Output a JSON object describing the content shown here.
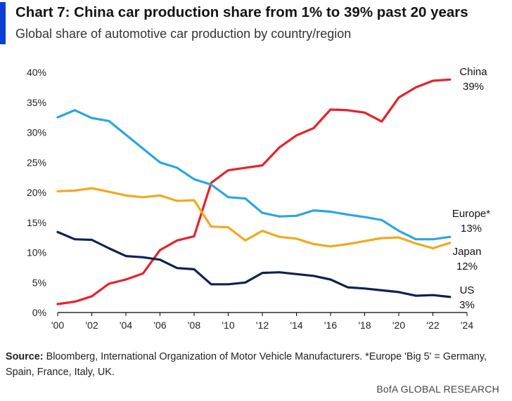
{
  "header": {
    "title": "Chart 7: China car production share from 1% to 39% past 20 years",
    "subtitle": "Global share of automotive car production by country/region"
  },
  "footer": {
    "source_label": "Source:",
    "source_text": " Bloomberg, International Organization of Motor Vehicle Manufacturers. *Europe 'Big 5' = Germany, Spain, France, Italy, UK.",
    "brand": "BofA GLOBAL RESEARCH"
  },
  "colors": {
    "accent": "#0b3fd6",
    "china": "#e8202a",
    "europe": "#2aa7df",
    "japan": "#f0a81c",
    "us": "#0c2253",
    "axis": "#000000"
  },
  "chart_data": {
    "type": "line",
    "xlim": [
      2000,
      2024
    ],
    "ylim": [
      0,
      40
    ],
    "grid": false,
    "x_ticks": [
      2000,
      2002,
      2004,
      2006,
      2008,
      2010,
      2012,
      2014,
      2016,
      2018,
      2020,
      2022,
      2024
    ],
    "x_tick_labels": [
      "'00",
      "'02",
      "'04",
      "'06",
      "'08",
      "'10",
      "'12",
      "'14",
      "'16",
      "'18",
      "'20",
      "'22",
      "'24"
    ],
    "y_ticks": [
      0,
      5,
      10,
      15,
      20,
      25,
      30,
      35,
      40
    ],
    "y_tick_labels": [
      "0%",
      "5%",
      "10%",
      "15%",
      "20%",
      "25%",
      "30%",
      "35%",
      "40%"
    ],
    "x": [
      2000,
      2001,
      2002,
      2003,
      2004,
      2005,
      2006,
      2007,
      2008,
      2009,
      2010,
      2011,
      2012,
      2013,
      2014,
      2015,
      2016,
      2017,
      2018,
      2019,
      2020,
      2021,
      2022,
      2023
    ],
    "series": [
      {
        "name": "China",
        "end_label": "39%",
        "color": "#e8202a",
        "values": [
          1.4,
          1.8,
          2.7,
          4.8,
          5.5,
          6.5,
          10.4,
          12.0,
          12.7,
          21.6,
          23.7,
          24.1,
          24.5,
          27.5,
          29.5,
          30.7,
          33.8,
          33.7,
          33.3,
          31.8,
          35.8,
          37.5,
          38.6,
          38.8
        ]
      },
      {
        "name": "Europe*",
        "end_label": "13%",
        "color": "#2aa7df",
        "values": [
          32.5,
          33.7,
          32.4,
          31.9,
          29.6,
          27.3,
          25.0,
          24.1,
          22.2,
          21.3,
          19.2,
          19.0,
          16.6,
          16.0,
          16.1,
          17.0,
          16.8,
          16.3,
          15.9,
          15.4,
          13.6,
          12.2,
          12.2,
          12.6
        ]
      },
      {
        "name": "Japan",
        "end_label": "12%",
        "color": "#f0a81c",
        "values": [
          20.2,
          20.3,
          20.7,
          20.1,
          19.5,
          19.2,
          19.5,
          18.6,
          18.7,
          14.3,
          14.2,
          12.0,
          13.6,
          12.6,
          12.3,
          11.4,
          11.0,
          11.4,
          11.9,
          12.4,
          12.5,
          11.5,
          10.7,
          11.6
        ]
      },
      {
        "name": "US",
        "end_label": "3%",
        "color": "#0c2253",
        "values": [
          13.4,
          12.2,
          12.1,
          10.7,
          9.4,
          9.2,
          8.8,
          7.4,
          7.2,
          4.7,
          4.7,
          5.0,
          6.6,
          6.7,
          6.4,
          6.1,
          5.5,
          4.2,
          4.0,
          3.7,
          3.4,
          2.8,
          2.9,
          2.6
        ]
      }
    ]
  }
}
